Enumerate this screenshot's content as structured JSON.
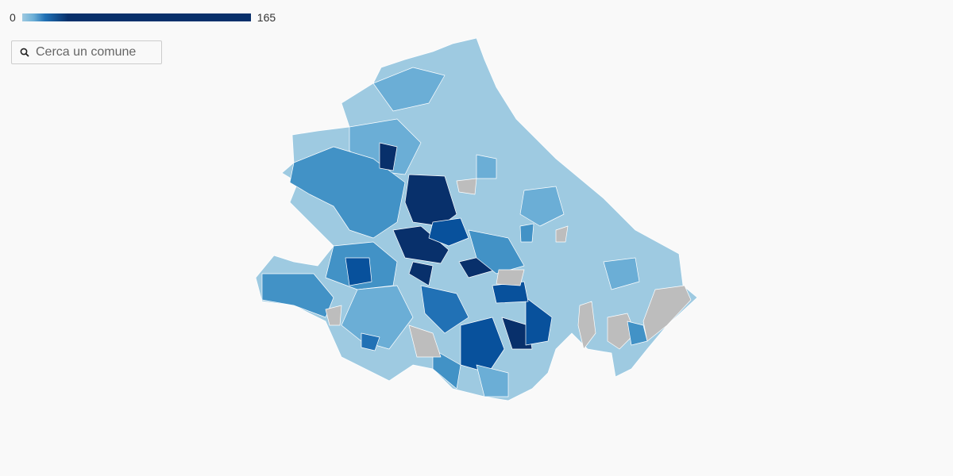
{
  "legend": {
    "min": 0,
    "max": 165
  },
  "search": {
    "placeholder": "Cerca un comune"
  }
}
